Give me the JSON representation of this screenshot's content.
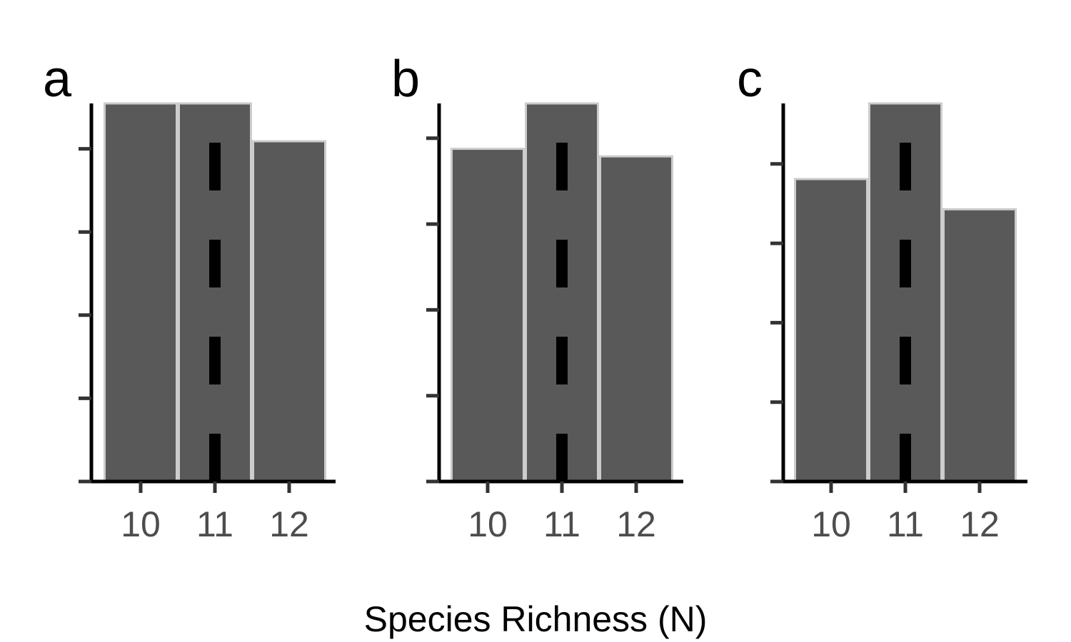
{
  "figure": {
    "xlabel": "Species Richness (N)",
    "bar_fill": "#595959",
    "bar_stroke": "#cccccc",
    "axis_color": "#000000",
    "tick_color": "#333333",
    "reference_line_color": "#000000"
  },
  "chart_data": [
    {
      "type": "bar",
      "panel_label": "a",
      "categories": [
        "10",
        "11",
        "12"
      ],
      "values": [
        1.0,
        1.0,
        0.9
      ],
      "ylim": [
        0,
        1.0
      ],
      "yticks": [
        0,
        0.22,
        0.44,
        0.66,
        0.88
      ],
      "ytick_labels_shown": false,
      "reference_line": {
        "x": 11,
        "style": "dashed"
      }
    },
    {
      "type": "bar",
      "panel_label": "b",
      "categories": [
        "10",
        "11",
        "12"
      ],
      "values": [
        0.88,
        1.0,
        0.86
      ],
      "ylim": [
        0,
        1.0
      ],
      "yticks": [
        0,
        0.227,
        0.454,
        0.681,
        0.908
      ],
      "ytick_labels_shown": false,
      "reference_line": {
        "x": 11,
        "style": "dashed"
      }
    },
    {
      "type": "bar",
      "panel_label": "c",
      "categories": [
        "10",
        "11",
        "12"
      ],
      "values": [
        0.8,
        1.0,
        0.72
      ],
      "ylim": [
        0,
        1.0
      ],
      "yticks": [
        0,
        0.21,
        0.42,
        0.63,
        0.84
      ],
      "ytick_labels_shown": false,
      "reference_line": {
        "x": 11,
        "style": "dashed"
      }
    }
  ]
}
